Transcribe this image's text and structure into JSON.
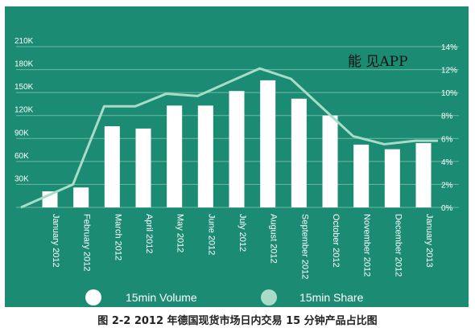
{
  "chart_data": {
    "type": "bar",
    "categories": [
      "January 2012",
      "February 2012",
      "March 2012",
      "April 2012",
      "May 2012",
      "June 2012",
      "July 2012",
      "August 2012",
      "September 2012",
      "October 2012",
      "November 2012",
      "December 2012",
      "January 2013"
    ],
    "series": [
      {
        "name": "15min Volume",
        "type": "bar",
        "axis": "left",
        "values": [
          21000,
          26000,
          106000,
          103000,
          133000,
          133000,
          152000,
          166000,
          142000,
          120000,
          82000,
          76000,
          84000
        ]
      },
      {
        "name": "15min Share",
        "type": "line",
        "axis": "right",
        "values": [
          0.0,
          2.0,
          8.8,
          8.8,
          9.9,
          9.7,
          10.9,
          12.1,
          11.2,
          8.7,
          6.2,
          5.5,
          5.8
        ]
      }
    ],
    "left_axis": {
      "ticks": [
        "30K",
        "60K",
        "90K",
        "120K",
        "150K",
        "180K",
        "210K"
      ],
      "tick_values": [
        30000,
        60000,
        90000,
        120000,
        150000,
        180000,
        210000
      ],
      "ylim": [
        0,
        210000
      ]
    },
    "right_axis": {
      "ticks": [
        "0%",
        "2%",
        "4%",
        "6%",
        "8%",
        "10%",
        "12%",
        "14%"
      ],
      "tick_values": [
        0,
        2,
        4,
        6,
        8,
        10,
        12,
        14
      ],
      "ylim": [
        0,
        14
      ]
    },
    "grid": true,
    "legend_position": "bottom",
    "watermark": "能 见APP",
    "caption": "图 2-2 2012 年德国现货市场日内交易 15 分钟产品占比图",
    "colors": {
      "background": "#1b8c73",
      "bar": "#ffffff",
      "line": "#a8dcc7",
      "grid": "#6fb8a4",
      "text": "#ffffff"
    }
  }
}
